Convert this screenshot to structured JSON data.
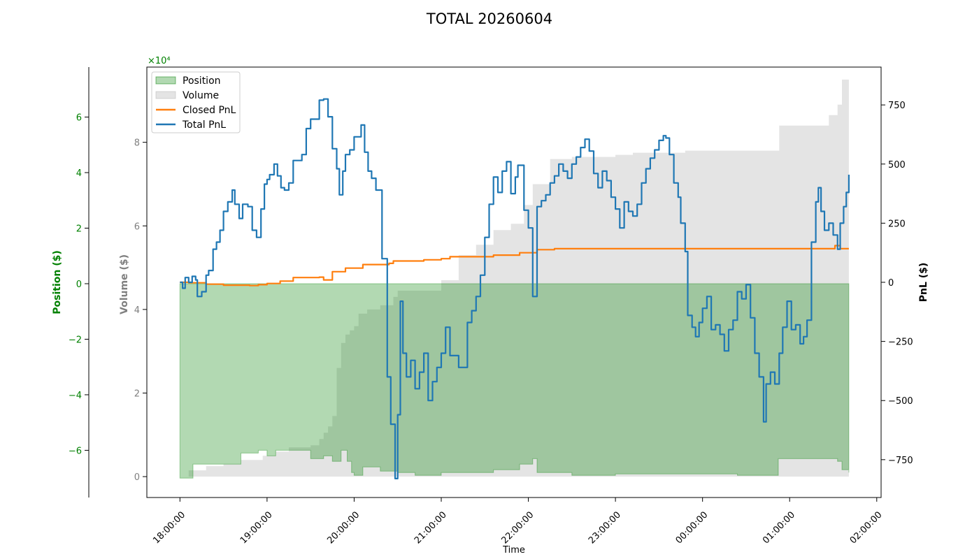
{
  "chart_data": {
    "type": "line",
    "title": "TOTAL 20260604",
    "xlabel": "Time",
    "x_ticks": [
      "18:00:00",
      "19:00:00",
      "20:00:00",
      "21:00:00",
      "22:00:00",
      "23:00:00",
      "00:00:00",
      "01:00:00",
      "02:00:00"
    ],
    "x_range_hours": [
      -0.38,
      8.05
    ],
    "axes": {
      "position": {
        "label": "Position ($)",
        "color": "#008000",
        "ylim": [
          -7.7,
          7.8
        ],
        "ticks": [
          -6,
          -4,
          -2,
          0,
          2,
          4,
          6
        ],
        "ticks_text": [
          "−6",
          "−4",
          "−2",
          "0",
          "2",
          "4",
          "6"
        ],
        "scale": "×10⁴"
      },
      "volume": {
        "label": "Volume ($)",
        "color": "#808080",
        "ylim": [
          -0.5,
          9.8
        ],
        "ticks": [
          0,
          2,
          4,
          6,
          8
        ],
        "ticks_text": [
          "0",
          "2",
          "4",
          "6",
          "8"
        ],
        "scale": "×10⁴"
      },
      "pnl": {
        "label": "PnL ($)",
        "color": "#000000",
        "ylim": [
          -910,
          910
        ],
        "ticks": [
          -750,
          -500,
          -250,
          0,
          250,
          500,
          750
        ],
        "ticks_text": [
          "−750",
          "−500",
          "−250",
          "0",
          "250",
          "500",
          "750"
        ]
      }
    },
    "legend": {
      "placement": "top-left",
      "entries": [
        {
          "label": "Position",
          "color": "#008000",
          "kind": "fill"
        },
        {
          "label": "Volume",
          "color": "#b3b3b3",
          "kind": "fill"
        },
        {
          "label": "Closed PnL",
          "color": "#ff7f0e",
          "kind": "line"
        },
        {
          "label": "Total PnL",
          "color": "#1f77b4",
          "kind": "line"
        }
      ]
    },
    "series": [
      {
        "name": "Position",
        "axis": "position",
        "color": "#008000",
        "style": "area",
        "points": [
          [
            0,
            -7
          ],
          [
            0.15,
            -6.5
          ],
          [
            0.5,
            -6.5
          ],
          [
            0.7,
            -6.1
          ],
          [
            0.9,
            -6.0
          ],
          [
            1.0,
            -6.2
          ],
          [
            1.1,
            -6.0
          ],
          [
            1.3,
            -6.0
          ],
          [
            1.5,
            -6.3
          ],
          [
            1.65,
            -6.2
          ],
          [
            1.75,
            -6.4
          ],
          [
            1.85,
            -6.0
          ],
          [
            1.92,
            -6.4
          ],
          [
            1.97,
            -6.8
          ],
          [
            2.0,
            -6.9
          ],
          [
            2.1,
            -6.6
          ],
          [
            2.3,
            -6.75
          ],
          [
            2.5,
            -6.8
          ],
          [
            2.7,
            -6.9
          ],
          [
            3.0,
            -6.8
          ],
          [
            3.3,
            -6.8
          ],
          [
            3.6,
            -6.7
          ],
          [
            3.9,
            -6.5
          ],
          [
            4.05,
            -6.3
          ],
          [
            4.1,
            -6.8
          ],
          [
            4.5,
            -6.9
          ],
          [
            5.0,
            -6.85
          ],
          [
            5.5,
            -6.85
          ],
          [
            5.8,
            -6.85
          ],
          [
            6.0,
            -6.85
          ],
          [
            6.4,
            -6.9
          ],
          [
            6.85,
            -6.9
          ],
          [
            6.87,
            -6.3
          ],
          [
            7.5,
            -6.3
          ],
          [
            7.55,
            -6.4
          ],
          [
            7.6,
            -6.7
          ],
          [
            7.68,
            -6.8
          ]
        ]
      },
      {
        "name": "Volume",
        "axis": "volume",
        "color": "#b3b3b3",
        "style": "area",
        "points": [
          [
            0,
            0
          ],
          [
            0.1,
            0.15
          ],
          [
            0.3,
            0.25
          ],
          [
            0.5,
            0.3
          ],
          [
            0.7,
            0.4
          ],
          [
            0.95,
            0.5
          ],
          [
            1.1,
            0.6
          ],
          [
            1.25,
            0.7
          ],
          [
            1.5,
            0.75
          ],
          [
            1.6,
            0.9
          ],
          [
            1.65,
            1.05
          ],
          [
            1.7,
            1.2
          ],
          [
            1.75,
            1.45
          ],
          [
            1.8,
            2.6
          ],
          [
            1.85,
            3.2
          ],
          [
            1.9,
            3.4
          ],
          [
            1.95,
            3.5
          ],
          [
            2.0,
            3.6
          ],
          [
            2.05,
            3.9
          ],
          [
            2.15,
            4.0
          ],
          [
            2.3,
            4.1
          ],
          [
            2.45,
            4.3
          ],
          [
            2.5,
            4.45
          ],
          [
            2.8,
            4.45
          ],
          [
            3.0,
            4.7
          ],
          [
            3.2,
            5.3
          ],
          [
            3.4,
            5.55
          ],
          [
            3.6,
            5.9
          ],
          [
            3.8,
            6.05
          ],
          [
            3.95,
            6.5
          ],
          [
            4.05,
            7.0
          ],
          [
            4.25,
            7.6
          ],
          [
            4.5,
            7.65
          ],
          [
            5.0,
            7.7
          ],
          [
            5.2,
            7.75
          ],
          [
            5.4,
            7.75
          ],
          [
            5.8,
            7.8
          ],
          [
            6.5,
            7.8
          ],
          [
            6.85,
            7.8
          ],
          [
            6.88,
            8.4
          ],
          [
            7.4,
            8.4
          ],
          [
            7.45,
            8.65
          ],
          [
            7.55,
            8.9
          ],
          [
            7.6,
            9.5
          ],
          [
            7.68,
            9.5
          ]
        ]
      },
      {
        "name": "Closed PnL",
        "axis": "pnl",
        "color": "#ff7f0e",
        "style": "step",
        "points": [
          [
            0,
            0
          ],
          [
            0.1,
            -2
          ],
          [
            0.3,
            -8
          ],
          [
            0.5,
            -12
          ],
          [
            0.8,
            -14
          ],
          [
            0.9,
            -10
          ],
          [
            1.0,
            -5
          ],
          [
            1.15,
            5
          ],
          [
            1.3,
            20
          ],
          [
            1.6,
            22
          ],
          [
            1.65,
            10
          ],
          [
            1.75,
            45
          ],
          [
            1.9,
            60
          ],
          [
            2.1,
            75
          ],
          [
            2.4,
            80
          ],
          [
            2.45,
            90
          ],
          [
            2.8,
            95
          ],
          [
            3.0,
            100
          ],
          [
            3.1,
            108
          ],
          [
            3.6,
            115
          ],
          [
            3.9,
            125
          ],
          [
            4.1,
            138
          ],
          [
            4.3,
            142
          ],
          [
            5.0,
            142
          ],
          [
            6.0,
            142
          ],
          [
            7.5,
            142
          ],
          [
            7.52,
            155
          ],
          [
            7.58,
            142
          ],
          [
            7.68,
            142
          ]
        ]
      },
      {
        "name": "Total PnL",
        "axis": "pnl",
        "color": "#1f77b4",
        "style": "step",
        "points": [
          [
            0,
            0
          ],
          [
            0.03,
            -25
          ],
          [
            0.06,
            20
          ],
          [
            0.1,
            0
          ],
          [
            0.14,
            25
          ],
          [
            0.18,
            10
          ],
          [
            0.2,
            -60
          ],
          [
            0.25,
            -40
          ],
          [
            0.3,
            30
          ],
          [
            0.33,
            50
          ],
          [
            0.38,
            140
          ],
          [
            0.42,
            170
          ],
          [
            0.46,
            220
          ],
          [
            0.5,
            300
          ],
          [
            0.55,
            340
          ],
          [
            0.6,
            390
          ],
          [
            0.63,
            330
          ],
          [
            0.68,
            270
          ],
          [
            0.72,
            330
          ],
          [
            0.78,
            320
          ],
          [
            0.83,
            220
          ],
          [
            0.88,
            190
          ],
          [
            0.93,
            310
          ],
          [
            0.97,
            415
          ],
          [
            1.0,
            435
          ],
          [
            1.03,
            455
          ],
          [
            1.08,
            500
          ],
          [
            1.12,
            450
          ],
          [
            1.16,
            400
          ],
          [
            1.2,
            390
          ],
          [
            1.25,
            420
          ],
          [
            1.3,
            515
          ],
          [
            1.4,
            540
          ],
          [
            1.45,
            650
          ],
          [
            1.5,
            690
          ],
          [
            1.55,
            690
          ],
          [
            1.6,
            770
          ],
          [
            1.65,
            775
          ],
          [
            1.7,
            700
          ],
          [
            1.75,
            565
          ],
          [
            1.8,
            480
          ],
          [
            1.83,
            370
          ],
          [
            1.87,
            470
          ],
          [
            1.9,
            540
          ],
          [
            1.95,
            560
          ],
          [
            2.0,
            615
          ],
          [
            2.08,
            665
          ],
          [
            2.12,
            550
          ],
          [
            2.16,
            470
          ],
          [
            2.2,
            440
          ],
          [
            2.25,
            390
          ],
          [
            2.32,
            100
          ],
          [
            2.38,
            -400
          ],
          [
            2.42,
            -600
          ],
          [
            2.47,
            -830
          ],
          [
            2.5,
            -560
          ],
          [
            2.53,
            -80
          ],
          [
            2.56,
            -300
          ],
          [
            2.6,
            -400
          ],
          [
            2.65,
            -330
          ],
          [
            2.7,
            -450
          ],
          [
            2.75,
            -380
          ],
          [
            2.8,
            -300
          ],
          [
            2.85,
            -500
          ],
          [
            2.9,
            -420
          ],
          [
            2.95,
            -360
          ],
          [
            3.0,
            -300
          ],
          [
            3.05,
            -190
          ],
          [
            3.1,
            -310
          ],
          [
            3.2,
            -360
          ],
          [
            3.3,
            -170
          ],
          [
            3.35,
            -120
          ],
          [
            3.4,
            -60
          ],
          [
            3.45,
            30
          ],
          [
            3.5,
            190
          ],
          [
            3.55,
            330
          ],
          [
            3.6,
            445
          ],
          [
            3.65,
            380
          ],
          [
            3.7,
            470
          ],
          [
            3.75,
            510
          ],
          [
            3.8,
            375
          ],
          [
            3.85,
            445
          ],
          [
            3.88,
            495
          ],
          [
            3.95,
            305
          ],
          [
            4.0,
            230
          ],
          [
            4.05,
            -60
          ],
          [
            4.1,
            320
          ],
          [
            4.15,
            345
          ],
          [
            4.2,
            370
          ],
          [
            4.25,
            420
          ],
          [
            4.3,
            450
          ],
          [
            4.35,
            500
          ],
          [
            4.4,
            470
          ],
          [
            4.45,
            440
          ],
          [
            4.5,
            500
          ],
          [
            4.55,
            530
          ],
          [
            4.6,
            570
          ],
          [
            4.65,
            605
          ],
          [
            4.7,
            555
          ],
          [
            4.75,
            460
          ],
          [
            4.8,
            400
          ],
          [
            4.85,
            470
          ],
          [
            4.9,
            430
          ],
          [
            4.95,
            360
          ],
          [
            5.0,
            310
          ],
          [
            5.05,
            230
          ],
          [
            5.1,
            340
          ],
          [
            5.15,
            300
          ],
          [
            5.2,
            280
          ],
          [
            5.25,
            330
          ],
          [
            5.3,
            420
          ],
          [
            5.35,
            480
          ],
          [
            5.4,
            525
          ],
          [
            5.45,
            560
          ],
          [
            5.5,
            600
          ],
          [
            5.55,
            620
          ],
          [
            5.58,
            610
          ],
          [
            5.62,
            540
          ],
          [
            5.67,
            420
          ],
          [
            5.72,
            360
          ],
          [
            5.75,
            250
          ],
          [
            5.8,
            130
          ],
          [
            5.83,
            -140
          ],
          [
            5.88,
            -190
          ],
          [
            5.92,
            -230
          ],
          [
            5.96,
            -170
          ],
          [
            6.0,
            -110
          ],
          [
            6.05,
            -60
          ],
          [
            6.1,
            -200
          ],
          [
            6.15,
            -180
          ],
          [
            6.2,
            -220
          ],
          [
            6.25,
            -290
          ],
          [
            6.3,
            -200
          ],
          [
            6.35,
            -160
          ],
          [
            6.4,
            -40
          ],
          [
            6.45,
            -70
          ],
          [
            6.5,
            -10
          ],
          [
            6.55,
            -150
          ],
          [
            6.6,
            -300
          ],
          [
            6.65,
            -400
          ],
          [
            6.7,
            -590
          ],
          [
            6.73,
            -430
          ],
          [
            6.78,
            -380
          ],
          [
            6.83,
            -430
          ],
          [
            6.88,
            -300
          ],
          [
            6.92,
            -190
          ],
          [
            6.97,
            -80
          ],
          [
            7.02,
            -200
          ],
          [
            7.07,
            -180
          ],
          [
            7.12,
            -260
          ],
          [
            7.16,
            -230
          ],
          [
            7.2,
            -160
          ],
          [
            7.25,
            170
          ],
          [
            7.3,
            340
          ],
          [
            7.33,
            400
          ],
          [
            7.36,
            300
          ],
          [
            7.4,
            220
          ],
          [
            7.45,
            250
          ],
          [
            7.5,
            200
          ],
          [
            7.55,
            140
          ],
          [
            7.58,
            250
          ],
          [
            7.62,
            320
          ],
          [
            7.65,
            380
          ],
          [
            7.68,
            455
          ]
        ]
      }
    ]
  }
}
